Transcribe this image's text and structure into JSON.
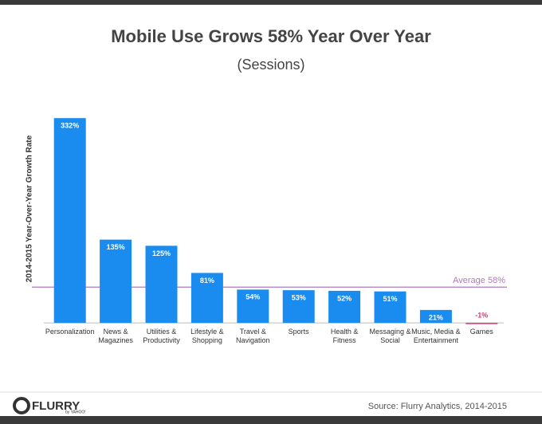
{
  "chart_data": {
    "type": "bar",
    "title": "Mobile Use Grows 58% Year Over Year",
    "subtitle": "(Sessions)",
    "y_label": "2014-2015 Year-Over-Year Growth Rate",
    "categories": [
      "Personalization",
      "News &\nMagazines",
      "Utilities &\nProductivity",
      "Lifestyle &\nShopping",
      "Travel &\nNavigation",
      "Sports",
      "Health &\nFitness",
      "Messaging &\nSocial",
      "Music, Media &\nEntertainment",
      "Games"
    ],
    "values": [
      332,
      135,
      125,
      81,
      54,
      53,
      52,
      51,
      21,
      -1
    ],
    "value_labels": [
      "332%",
      "135%",
      "125%",
      "81%",
      "54%",
      "53%",
      "52%",
      "51%",
      "21%",
      "-1%"
    ],
    "colors": [
      "#1a8cf0",
      "#1a8cf0",
      "#1a8cf0",
      "#1a8cf0",
      "#1a8cf0",
      "#1a8cf0",
      "#1a8cf0",
      "#1a8cf0",
      "#1a8cf0",
      "#e0336f"
    ],
    "ylim": [
      -5,
      340
    ],
    "reference_line": {
      "value": 58,
      "label": "Average 58%",
      "color": "#b07ac0"
    },
    "source": "Source: Flurry Analytics, 2014-2015"
  },
  "brand": {
    "name": "FLURRY",
    "sub": "by YAHOO!"
  }
}
